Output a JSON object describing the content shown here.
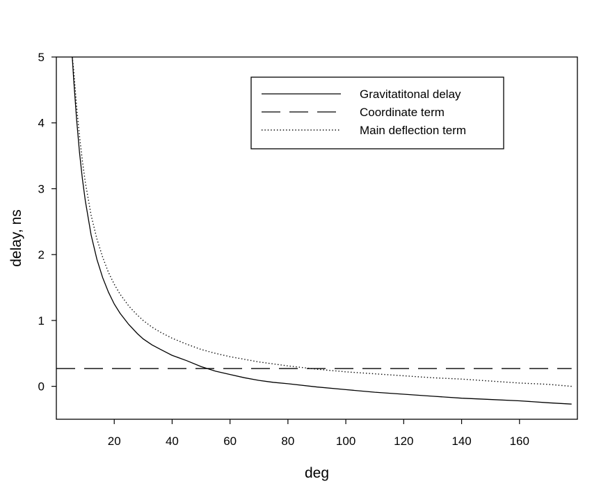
{
  "chart_data": {
    "type": "line",
    "xlabel": "deg",
    "ylabel": "delay, ns",
    "xlim": [
      0,
      180
    ],
    "ylim": [
      -0.5,
      5
    ],
    "xticks": [
      20,
      40,
      60,
      80,
      100,
      120,
      140,
      160
    ],
    "yticks": [
      0,
      1,
      2,
      3,
      4,
      5
    ],
    "grid": false,
    "legend_position": "top-right",
    "series": [
      {
        "name": "Gravitatitonal delay",
        "style": "solid",
        "color": "#000000",
        "points": [
          [
            5.5,
            5.0
          ],
          [
            6,
            4.65
          ],
          [
            7,
            4.05
          ],
          [
            8,
            3.55
          ],
          [
            9,
            3.15
          ],
          [
            10,
            2.82
          ],
          [
            12,
            2.3
          ],
          [
            14,
            1.93
          ],
          [
            16,
            1.65
          ],
          [
            18,
            1.43
          ],
          [
            20,
            1.25
          ],
          [
            22,
            1.11
          ],
          [
            25,
            0.94
          ],
          [
            28,
            0.8
          ],
          [
            30,
            0.72
          ],
          [
            33,
            0.63
          ],
          [
            36,
            0.56
          ],
          [
            40,
            0.47
          ],
          [
            45,
            0.39
          ],
          [
            50,
            0.3
          ],
          [
            55,
            0.23
          ],
          [
            60,
            0.18
          ],
          [
            65,
            0.13
          ],
          [
            70,
            0.09
          ],
          [
            75,
            0.06
          ],
          [
            80,
            0.04
          ],
          [
            90,
            -0.01
          ],
          [
            100,
            -0.05
          ],
          [
            110,
            -0.09
          ],
          [
            120,
            -0.12
          ],
          [
            130,
            -0.15
          ],
          [
            140,
            -0.18
          ],
          [
            150,
            -0.2
          ],
          [
            160,
            -0.22
          ],
          [
            170,
            -0.25
          ],
          [
            178,
            -0.27
          ]
        ]
      },
      {
        "name": "Coordinate term",
        "style": "dashed",
        "color": "#000000",
        "points": [
          [
            0,
            0.27
          ],
          [
            178,
            0.27
          ]
        ]
      },
      {
        "name": "Main deflection term",
        "style": "dotted",
        "color": "#000000",
        "points": [
          [
            5.5,
            5.0
          ],
          [
            6,
            4.8
          ],
          [
            7,
            4.25
          ],
          [
            8,
            3.8
          ],
          [
            9,
            3.42
          ],
          [
            10,
            3.1
          ],
          [
            12,
            2.6
          ],
          [
            14,
            2.24
          ],
          [
            16,
            1.96
          ],
          [
            18,
            1.73
          ],
          [
            20,
            1.55
          ],
          [
            22,
            1.4
          ],
          [
            25,
            1.22
          ],
          [
            28,
            1.08
          ],
          [
            30,
            1.0
          ],
          [
            33,
            0.9
          ],
          [
            36,
            0.82
          ],
          [
            40,
            0.73
          ],
          [
            45,
            0.64
          ],
          [
            50,
            0.56
          ],
          [
            55,
            0.5
          ],
          [
            60,
            0.45
          ],
          [
            65,
            0.41
          ],
          [
            70,
            0.37
          ],
          [
            75,
            0.34
          ],
          [
            80,
            0.31
          ],
          [
            90,
            0.26
          ],
          [
            100,
            0.22
          ],
          [
            110,
            0.19
          ],
          [
            120,
            0.16
          ],
          [
            130,
            0.13
          ],
          [
            140,
            0.11
          ],
          [
            150,
            0.08
          ],
          [
            160,
            0.05
          ],
          [
            170,
            0.03
          ],
          [
            178,
            0.0
          ]
        ]
      }
    ]
  }
}
